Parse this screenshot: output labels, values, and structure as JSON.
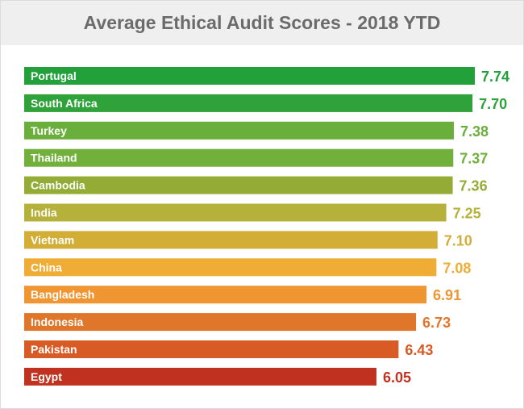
{
  "chart_data": {
    "type": "bar",
    "orientation": "horizontal",
    "title": "Average Ethical Audit Scores - 2018 YTD",
    "categories": [
      "Portugal",
      "South Africa",
      "Turkey",
      "Thailand",
      "Cambodia",
      "India",
      "Vietnam",
      "China",
      "Bangladesh",
      "Indonesia",
      "Pakistan",
      "Egypt"
    ],
    "values": [
      7.74,
      7.7,
      7.38,
      7.37,
      7.36,
      7.25,
      7.1,
      7.08,
      6.91,
      6.73,
      6.43,
      6.05
    ],
    "value_labels": [
      "7.74",
      "7.70",
      "7.38",
      "7.37",
      "7.36",
      "7.25",
      "7.10",
      "7.08",
      "6.91",
      "6.73",
      "6.43",
      "6.05"
    ],
    "colors": [
      "#22a13a",
      "#2fa23a",
      "#6aae3c",
      "#72b03c",
      "#94ac36",
      "#b5b13a",
      "#d3ae36",
      "#f0ad35",
      "#ef9632",
      "#e0762a",
      "#d85b25",
      "#c0311f"
    ],
    "xlim": [
      0,
      7.74
    ],
    "grid": false,
    "legend": "none"
  }
}
